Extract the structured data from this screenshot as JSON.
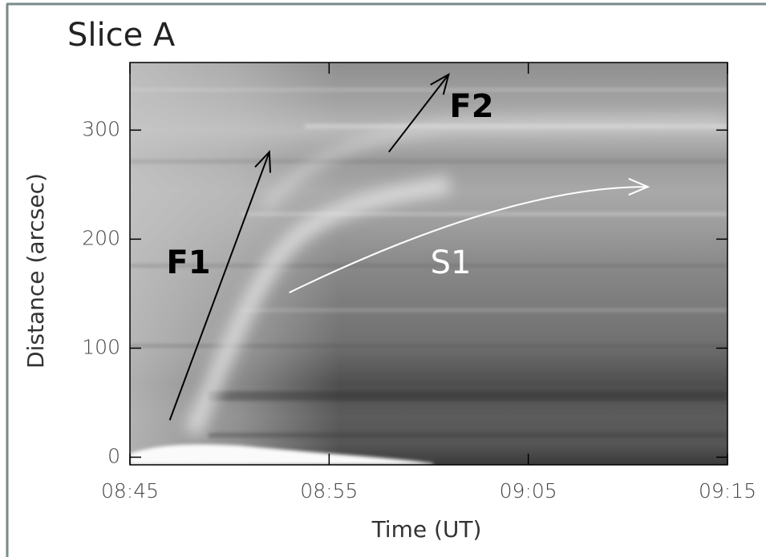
{
  "chart_data": {
    "type": "heatmap",
    "title": "Slice A",
    "x_label": "Time (UT)",
    "y_label": "Distance (arcsec)",
    "xlim": [
      "08:45",
      "09:15"
    ],
    "xticks": [
      "08:45",
      "08:55",
      "09:05",
      "09:15"
    ],
    "ylim": [
      -7,
      362
    ],
    "yticks": [
      0,
      100,
      200,
      300
    ],
    "annotations": [
      {
        "label": "F1",
        "color": "#000000",
        "x": [
          "08:47",
          "08:52"
        ],
        "y": [
          34,
          280
        ]
      },
      {
        "label": "F2",
        "color": "#000000",
        "x": [
          "08:58",
          "09:01"
        ],
        "y": [
          280,
          351
        ]
      },
      {
        "label": "S1",
        "color": "#ffffff",
        "x": [
          "08:53",
          "09:03",
          "09:11"
        ],
        "y": [
          151,
          224,
          248
        ]
      }
    ]
  }
}
